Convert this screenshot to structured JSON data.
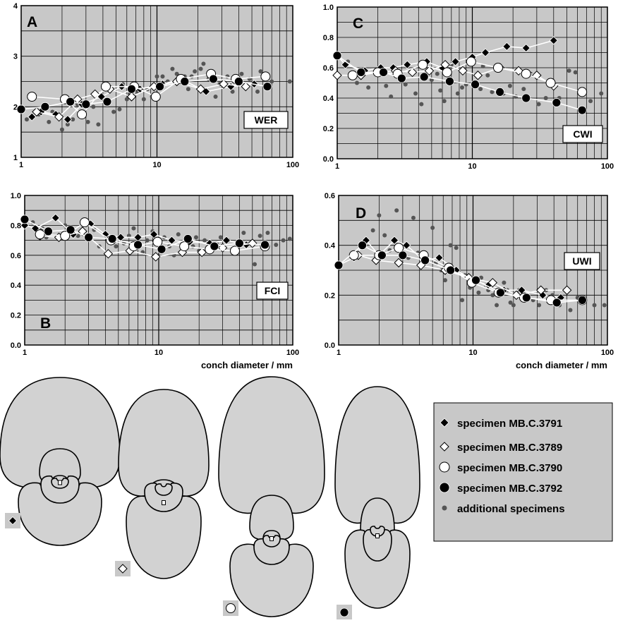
{
  "charts": [
    {
      "id": "A",
      "badge": "WER",
      "xlabel": ""
    },
    {
      "id": "C",
      "badge": "CWI",
      "xlabel": ""
    },
    {
      "id": "B",
      "badge": "FCI",
      "xlabel": "conch diameter / mm"
    },
    {
      "id": "D",
      "badge": "UWI",
      "xlabel": "conch diameter / mm"
    }
  ],
  "legend": {
    "items": [
      {
        "marker": "diamond-black",
        "label": "specimen MB.C.3791"
      },
      {
        "marker": "diamond-white",
        "label": "specimen MB.C.3789"
      },
      {
        "marker": "circle-white",
        "label": "specimen MB.C.3790"
      },
      {
        "marker": "circle-black",
        "label": "specimen MB.C.3792"
      },
      {
        "marker": "dot-grey",
        "label": "additional specimens"
      }
    ]
  },
  "cross_sections": [
    {
      "specimen": "specimen MB.C.3791",
      "marker": "diamond-black"
    },
    {
      "specimen": "specimen MB.C.3789",
      "marker": "diamond-white"
    },
    {
      "specimen": "specimen MB.C.3790",
      "marker": "circle-white"
    },
    {
      "specimen": "specimen MB.C.3792",
      "marker": "circle-black"
    }
  ],
  "colors": {
    "plot_bg": "#c8c8c8",
    "shape_fill": "#d2d2d2",
    "grid": "#000000",
    "additional": "#555555"
  },
  "chart_data": [
    {
      "id": "A",
      "type": "scatter",
      "title": "",
      "xlabel": "",
      "ylabel": "",
      "xscale": "log",
      "xlim": [
        1,
        100
      ],
      "ylim": [
        1,
        4
      ],
      "xticks": [
        "1",
        "10",
        "100"
      ],
      "yticks": [
        "1",
        "2",
        "3",
        "4"
      ],
      "grid": "on",
      "annotation": "WER",
      "series": [
        {
          "name": "specimen MB.C.3791",
          "marker": "diamond-black",
          "connected": true,
          "x": [
            1.2,
            1.4,
            1.8,
            2.2,
            2.8,
            3.9,
            5.5,
            7.5,
            11,
            15,
            23,
            35,
            52
          ],
          "y": [
            1.8,
            1.9,
            1.85,
            1.75,
            2.05,
            2.2,
            2.4,
            2.35,
            2.45,
            2.55,
            2.3,
            2.4,
            2.45
          ]
        },
        {
          "name": "specimen MB.C.3789",
          "marker": "diamond-white",
          "connected": true,
          "x": [
            1.3,
            1.9,
            2.6,
            3.5,
            4.5,
            6.5,
            9.5,
            14,
            21,
            31,
            45
          ],
          "y": [
            1.9,
            1.8,
            2.15,
            2.25,
            2.35,
            2.2,
            2.4,
            2.5,
            2.35,
            2.45,
            2.4
          ]
        },
        {
          "name": "specimen MB.C.3790",
          "marker": "circle-white",
          "connected": true,
          "x": [
            1.2,
            2.1,
            2.8,
            4.2,
            6.8,
            9.8,
            15,
            25,
            38,
            63
          ],
          "y": [
            2.2,
            2.15,
            1.85,
            2.4,
            2.4,
            2.2,
            2.55,
            2.65,
            2.55,
            2.6
          ]
        },
        {
          "name": "specimen MB.C.3792",
          "marker": "circle-black",
          "connected": true,
          "x": [
            1.0,
            1.5,
            2.3,
            3.0,
            4.3,
            6.5,
            10.5,
            16,
            26,
            40,
            65
          ],
          "y": [
            1.95,
            2.0,
            2.1,
            2.05,
            2.1,
            2.35,
            2.4,
            2.5,
            2.55,
            2.5,
            2.4
          ]
        },
        {
          "name": "additional specimens",
          "marker": "dot-grey",
          "connected": false,
          "x": [
            1.1,
            1.35,
            1.6,
            1.7,
            1.9,
            2.0,
            2.2,
            2.4,
            2.6,
            3.1,
            3.4,
            3.7,
            4.8,
            5.3,
            5.6,
            6.0,
            6.3,
            7.2,
            8.0,
            8.5,
            9.2,
            10,
            11,
            12,
            13,
            14,
            16,
            17,
            18,
            19,
            21,
            22,
            24,
            27,
            29,
            33,
            36,
            42,
            48,
            55,
            58,
            62,
            70,
            95
          ],
          "y": [
            1.75,
            1.85,
            1.7,
            1.9,
            1.8,
            1.55,
            1.65,
            1.75,
            2.05,
            1.7,
            2.0,
            1.65,
            1.9,
            1.95,
            2.45,
            2.15,
            2.25,
            2.3,
            2.15,
            2.35,
            2.2,
            2.6,
            2.6,
            2.5,
            2.75,
            2.65,
            2.6,
            2.35,
            2.6,
            2.7,
            2.75,
            2.85,
            2.55,
            2.2,
            2.45,
            2.6,
            2.3,
            2.65,
            2.55,
            2.3,
            2.7,
            2.65,
            2.5,
            2.5
          ]
        }
      ]
    },
    {
      "id": "C",
      "type": "scatter",
      "title": "",
      "xlabel": "",
      "ylabel": "",
      "xscale": "log",
      "xlim": [
        1,
        100
      ],
      "ylim": [
        0,
        1
      ],
      "xticks": [
        "1",
        "10",
        "100"
      ],
      "yticks": [
        "0.0",
        "0.2",
        "0.4",
        "0.6",
        "0.8",
        "1.0"
      ],
      "grid": "on",
      "annotation": "CWI",
      "series": [
        {
          "name": "specimen MB.C.3791",
          "marker": "diamond-black",
          "connected": true,
          "x": [
            1.0,
            1.15,
            1.6,
            2.1,
            2.6,
            3.3,
            4.6,
            6.0,
            7.5,
            10,
            12.5,
            18,
            25,
            40
          ],
          "y": [
            0.68,
            0.62,
            0.58,
            0.6,
            0.6,
            0.62,
            0.64,
            0.6,
            0.64,
            0.67,
            0.7,
            0.74,
            0.73,
            0.78
          ]
        },
        {
          "name": "specimen MB.C.3789",
          "marker": "diamond-white",
          "connected": true,
          "x": [
            1.0,
            1.5,
            2.0,
            2.7,
            3.6,
            4.8,
            6.3,
            8.5,
            11,
            16,
            22,
            30,
            40
          ],
          "y": [
            0.55,
            0.55,
            0.57,
            0.58,
            0.57,
            0.58,
            0.62,
            0.58,
            0.55,
            0.6,
            0.58,
            0.55,
            0.48
          ]
        },
        {
          "name": "specimen MB.C.3790",
          "marker": "circle-white",
          "connected": true,
          "x": [
            1.3,
            2.0,
            2.8,
            4.3,
            6.5,
            9.8,
            15.5,
            25,
            38,
            65
          ],
          "y": [
            0.55,
            0.57,
            0.56,
            0.62,
            0.57,
            0.64,
            0.6,
            0.56,
            0.5,
            0.44
          ]
        },
        {
          "name": "specimen MB.C.3792",
          "marker": "circle-black",
          "connected": true,
          "x": [
            1.0,
            1.5,
            2.2,
            3.0,
            4.4,
            6.8,
            10.5,
            16,
            25,
            42,
            65
          ],
          "y": [
            0.68,
            0.57,
            0.57,
            0.53,
            0.54,
            0.51,
            0.49,
            0.44,
            0.4,
            0.37,
            0.32
          ]
        },
        {
          "name": "additional specimens",
          "marker": "dot-grey",
          "connected": false,
          "x": [
            1.2,
            1.4,
            1.7,
            2.3,
            2.5,
            3.2,
            3.5,
            3.8,
            4.2,
            5.0,
            5.5,
            5.8,
            6.2,
            7.0,
            7.8,
            8.4,
            9.0,
            11.5,
            12,
            13,
            14,
            17,
            19,
            21,
            24,
            27,
            31,
            35,
            44,
            52,
            58,
            75,
            90
          ],
          "y": [
            0.64,
            0.5,
            0.47,
            0.48,
            0.41,
            0.49,
            0.58,
            0.43,
            0.36,
            0.52,
            0.56,
            0.45,
            0.38,
            0.62,
            0.43,
            0.47,
            0.49,
            0.46,
            0.61,
            0.55,
            0.44,
            0.43,
            0.48,
            0.41,
            0.46,
            0.56,
            0.36,
            0.4,
            0.4,
            0.58,
            0.57,
            0.38,
            0.43
          ]
        }
      ]
    },
    {
      "id": "B",
      "type": "scatter",
      "title": "",
      "xlabel": "conch diameter / mm",
      "ylabel": "",
      "xscale": "log",
      "xlim": [
        1,
        100
      ],
      "ylim": [
        0,
        1
      ],
      "xticks": [
        "1",
        "10",
        "100"
      ],
      "yticks": [
        "0.0",
        "0.2",
        "0.4",
        "0.6",
        "0.8",
        "1.0"
      ],
      "grid": "on",
      "annotation": "FCI",
      "series": [
        {
          "name": "specimen MB.C.3791",
          "marker": "diamond-black",
          "connected": true,
          "x": [
            1.0,
            1.2,
            1.7,
            2.3,
            3.1,
            4.0,
            5.2,
            7.0,
            9.2,
            12.5,
            17,
            24,
            32,
            45
          ],
          "y": [
            0.8,
            0.78,
            0.85,
            0.74,
            0.81,
            0.74,
            0.72,
            0.72,
            0.74,
            0.7,
            0.69,
            0.68,
            0.7,
            0.67
          ]
        },
        {
          "name": "specimen MB.C.3789",
          "marker": "diamond-white",
          "connected": true,
          "x": [
            1.3,
            1.8,
            2.7,
            4.2,
            6.1,
            9.5,
            15,
            21,
            30,
            50
          ],
          "y": [
            0.73,
            0.72,
            0.76,
            0.61,
            0.63,
            0.59,
            0.62,
            0.62,
            0.65,
            0.68
          ]
        },
        {
          "name": "specimen MB.C.3790",
          "marker": "circle-white",
          "connected": true,
          "x": [
            1.3,
            2.0,
            2.8,
            4.4,
            6.5,
            9.8,
            15.5,
            24,
            37,
            62
          ],
          "y": [
            0.74,
            0.73,
            0.82,
            0.7,
            0.66,
            0.69,
            0.66,
            0.64,
            0.63,
            0.66
          ]
        },
        {
          "name": "specimen MB.C.3792",
          "marker": "circle-black",
          "connected": true,
          "x": [
            1.0,
            1.5,
            2.2,
            3.0,
            4.5,
            7.0,
            10.5,
            16.5,
            26,
            40,
            62
          ],
          "y": [
            0.84,
            0.76,
            0.77,
            0.72,
            0.71,
            0.67,
            0.64,
            0.71,
            0.66,
            0.68,
            0.67
          ]
        },
        {
          "name": "additional specimens",
          "marker": "dot-grey",
          "connected": false,
          "x": [
            1.15,
            1.35,
            1.45,
            2.0,
            2.5,
            3.3,
            3.6,
            4.8,
            5.5,
            6.0,
            6.5,
            7.6,
            8.2,
            9.0,
            11,
            12,
            13,
            14,
            18,
            19,
            20,
            22,
            27,
            29,
            33,
            38,
            43,
            52,
            57,
            65,
            75,
            85,
            95
          ],
          "y": [
            0.82,
            0.78,
            0.72,
            0.8,
            0.73,
            0.77,
            0.66,
            0.66,
            0.68,
            0.73,
            0.78,
            0.62,
            0.7,
            0.76,
            0.72,
            0.66,
            0.6,
            0.74,
            0.66,
            0.72,
            0.63,
            0.7,
            0.68,
            0.72,
            0.7,
            0.66,
            0.75,
            0.54,
            0.73,
            0.75,
            0.67,
            0.7,
            0.71
          ]
        }
      ]
    },
    {
      "id": "D",
      "type": "scatter",
      "title": "",
      "xlabel": "conch diameter / mm",
      "ylabel": "",
      "xscale": "log",
      "xlim": [
        1,
        100
      ],
      "ylim": [
        0,
        0.6
      ],
      "xticks": [
        "1",
        "10",
        "100"
      ],
      "yticks": [
        "0.0",
        "0.2",
        "0.4",
        "0.6"
      ],
      "grid": "on",
      "annotation": "UWI",
      "series": [
        {
          "name": "specimen MB.C.3791",
          "marker": "diamond-black",
          "connected": true,
          "x": [
            1.0,
            1.3,
            1.6,
            2.0,
            2.6,
            3.2,
            4.3,
            5.6,
            7.5,
            10,
            13,
            17,
            23,
            33,
            45
          ],
          "y": [
            0.32,
            0.35,
            0.42,
            0.36,
            0.42,
            0.4,
            0.34,
            0.35,
            0.3,
            0.26,
            0.24,
            0.22,
            0.22,
            0.2,
            0.19
          ]
        },
        {
          "name": "specimen MB.C.3789",
          "marker": "diamond-white",
          "connected": true,
          "x": [
            1.4,
            1.9,
            2.8,
            4.1,
            6.2,
            9.3,
            14,
            21,
            32,
            50
          ],
          "y": [
            0.36,
            0.34,
            0.33,
            0.32,
            0.3,
            0.27,
            0.25,
            0.2,
            0.22,
            0.22
          ]
        },
        {
          "name": "specimen MB.C.3790",
          "marker": "circle-white",
          "connected": true,
          "x": [
            1.3,
            2.0,
            2.8,
            4.3,
            6.6,
            9.8,
            15.5,
            24,
            38,
            65
          ],
          "y": [
            0.36,
            0.36,
            0.39,
            0.36,
            0.31,
            0.25,
            0.21,
            0.19,
            0.18,
            0.18
          ]
        },
        {
          "name": "specimen MB.C.3792",
          "marker": "circle-black",
          "connected": true,
          "x": [
            1.0,
            1.5,
            2.1,
            3.0,
            4.4,
            6.8,
            10.5,
            16,
            25,
            42,
            65
          ],
          "y": [
            0.32,
            0.4,
            0.36,
            0.36,
            0.34,
            0.3,
            0.26,
            0.21,
            0.19,
            0.17,
            0.18
          ]
        },
        {
          "name": "additional specimens",
          "marker": "dot-grey",
          "connected": false,
          "x": [
            1.8,
            2.0,
            2.2,
            2.4,
            2.7,
            3.3,
            3.6,
            3.9,
            5.0,
            5.3,
            5.8,
            6.2,
            6.8,
            7.5,
            8.3,
            8.7,
            9.5,
            11,
            11.5,
            12.5,
            13,
            14,
            15,
            17,
            18,
            19,
            20,
            22,
            24,
            28,
            31,
            35,
            39,
            44,
            53,
            60,
            66,
            80,
            95
          ],
          "y": [
            0.46,
            0.52,
            0.44,
            0.38,
            0.54,
            0.35,
            0.51,
            0.37,
            0.47,
            0.33,
            0.3,
            0.26,
            0.4,
            0.39,
            0.18,
            0.28,
            0.23,
            0.21,
            0.27,
            0.24,
            0.22,
            0.2,
            0.16,
            0.25,
            0.22,
            0.17,
            0.16,
            0.22,
            0.2,
            0.18,
            0.16,
            0.22,
            0.2,
            0.16,
            0.14,
            0.19,
            0.17,
            0.16,
            0.16
          ]
        }
      ]
    }
  ]
}
